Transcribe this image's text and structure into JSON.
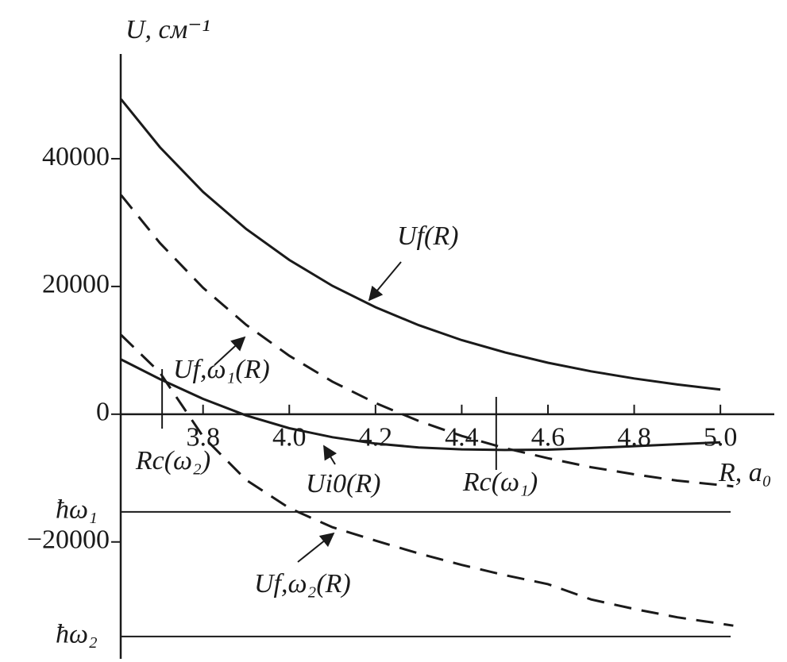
{
  "chart_data": {
    "type": "line",
    "y_label": "U, см⁻¹",
    "x_label": "R, a₀",
    "x": [
      3.61,
      3.7,
      3.8,
      3.9,
      4.0,
      4.1,
      4.2,
      4.3,
      4.4,
      4.5,
      4.6,
      4.7,
      4.8,
      4.9,
      5.0,
      5.03
    ],
    "series": [
      {
        "name": "Uf(R)",
        "color": "#1a1a1a",
        "dashed": false,
        "values": [
          49300,
          41800,
          34800,
          29000,
          24150,
          20100,
          16750,
          13950,
          11600,
          9680,
          8060,
          6710,
          5590,
          4650,
          3870,
          null
        ]
      },
      {
        "name": "Uf,ω₁(R)",
        "color": "#1a1a1a",
        "dashed": true,
        "values": [
          34300,
          26800,
          19800,
          14000,
          9150,
          5100,
          1750,
          -1050,
          -3400,
          -5300,
          -6900,
          -8300,
          -9400,
          -10400,
          -11100,
          -11300
        ]
      },
      {
        "name": "Ui0(R)",
        "color": "#1a1a1a",
        "dashed": false,
        "values": [
          8570,
          5500,
          2400,
          -200,
          -2200,
          -3600,
          -4600,
          -5200,
          -5500,
          -5600,
          -5550,
          -5300,
          -5000,
          -4700,
          -4400,
          null
        ]
      },
      {
        "name": "Uf,ω₂(R)",
        "color": "#1a1a1a",
        "dashed": true,
        "values": [
          12400,
          6500,
          -3500,
          -10300,
          -14700,
          -17700,
          -19800,
          -21800,
          -23600,
          -25200,
          -26600,
          -29000,
          -30500,
          -31800,
          -32800,
          -33100
        ]
      }
    ],
    "hlines": [
      {
        "label": "ħω₁",
        "value": -15300
      },
      {
        "label": "ħω₂",
        "value": -34800
      }
    ],
    "markers": [
      {
        "label": "Rc(ω₂)",
        "x": 3.705
      },
      {
        "label": "Rc(ω₁)",
        "x": 4.48
      }
    ],
    "xlim": [
      3.609,
      5.125
    ],
    "ylim": [
      -38300,
      56400
    ],
    "xticks": [
      3.8,
      {
        "value": 4.0,
        "label": "4.0"
      },
      4.2,
      4.4,
      4.6,
      4.8,
      {
        "value": 5.0,
        "label": "5.0"
      }
    ],
    "yticks": [
      {
        "value": -20000,
        "label": "−20000"
      },
      0,
      20000,
      40000
    ]
  }
}
